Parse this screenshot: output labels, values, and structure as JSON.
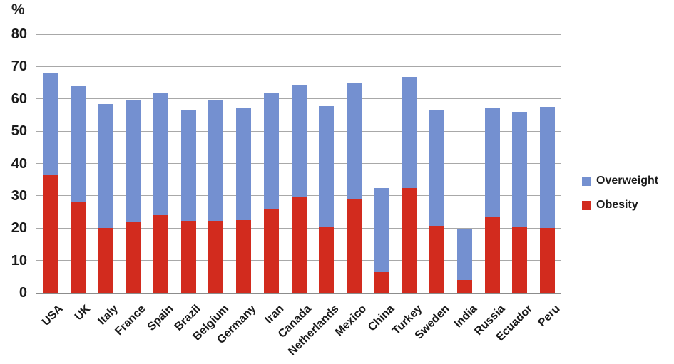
{
  "percent_axis_label": "%",
  "legend": [
    {
      "label": "Overweight",
      "color": "#7490D0"
    },
    {
      "label": "Obesity",
      "color": "#D22B1E"
    }
  ],
  "colors": {
    "overweight": "#7490D0",
    "obesity": "#D22B1E",
    "gridline": "#a8a8a8",
    "axis": "#8c8c8c",
    "text": "#1a1a1a"
  },
  "chart_data": {
    "type": "bar",
    "stacked": true,
    "title": "",
    "xlabel": "",
    "ylabel": "%",
    "ylim": [
      0,
      80
    ],
    "yticks": [
      0,
      10,
      20,
      30,
      40,
      50,
      60,
      70,
      80
    ],
    "grid": true,
    "legend_position": "right",
    "categories": [
      "USA",
      "UK",
      "Italy",
      "France",
      "Spain",
      "Brazil",
      "Belgium",
      "Germany",
      "Iran",
      "Canada",
      "Netherlands",
      "Mexico",
      "China",
      "Turkey",
      "Sweden",
      "India",
      "Russia",
      "Ecuador",
      "Peru"
    ],
    "series": [
      {
        "name": "Obesity",
        "color": "#D22B1E",
        "values": [
          36.5,
          28,
          20,
          22,
          24,
          22.2,
          22.2,
          22.4,
          26,
          29.5,
          20.6,
          29,
          6.5,
          32.3,
          20.7,
          4,
          23.3,
          20.2,
          20
        ]
      },
      {
        "name": "Overweight",
        "color": "#7490D0",
        "values": [
          31.5,
          36,
          38.5,
          37.5,
          37.8,
          34.5,
          37.3,
          34.6,
          35.8,
          34.7,
          37.2,
          36,
          26,
          34.5,
          35.7,
          15.8,
          34,
          35.8,
          37.5
        ]
      }
    ],
    "totals": [
      68,
      64,
      58.5,
      59.5,
      61.8,
      56.7,
      59.5,
      57,
      61.8,
      64.2,
      57.8,
      65,
      32.5,
      66.8,
      56.4,
      19.8,
      57.3,
      56,
      57.5
    ]
  }
}
